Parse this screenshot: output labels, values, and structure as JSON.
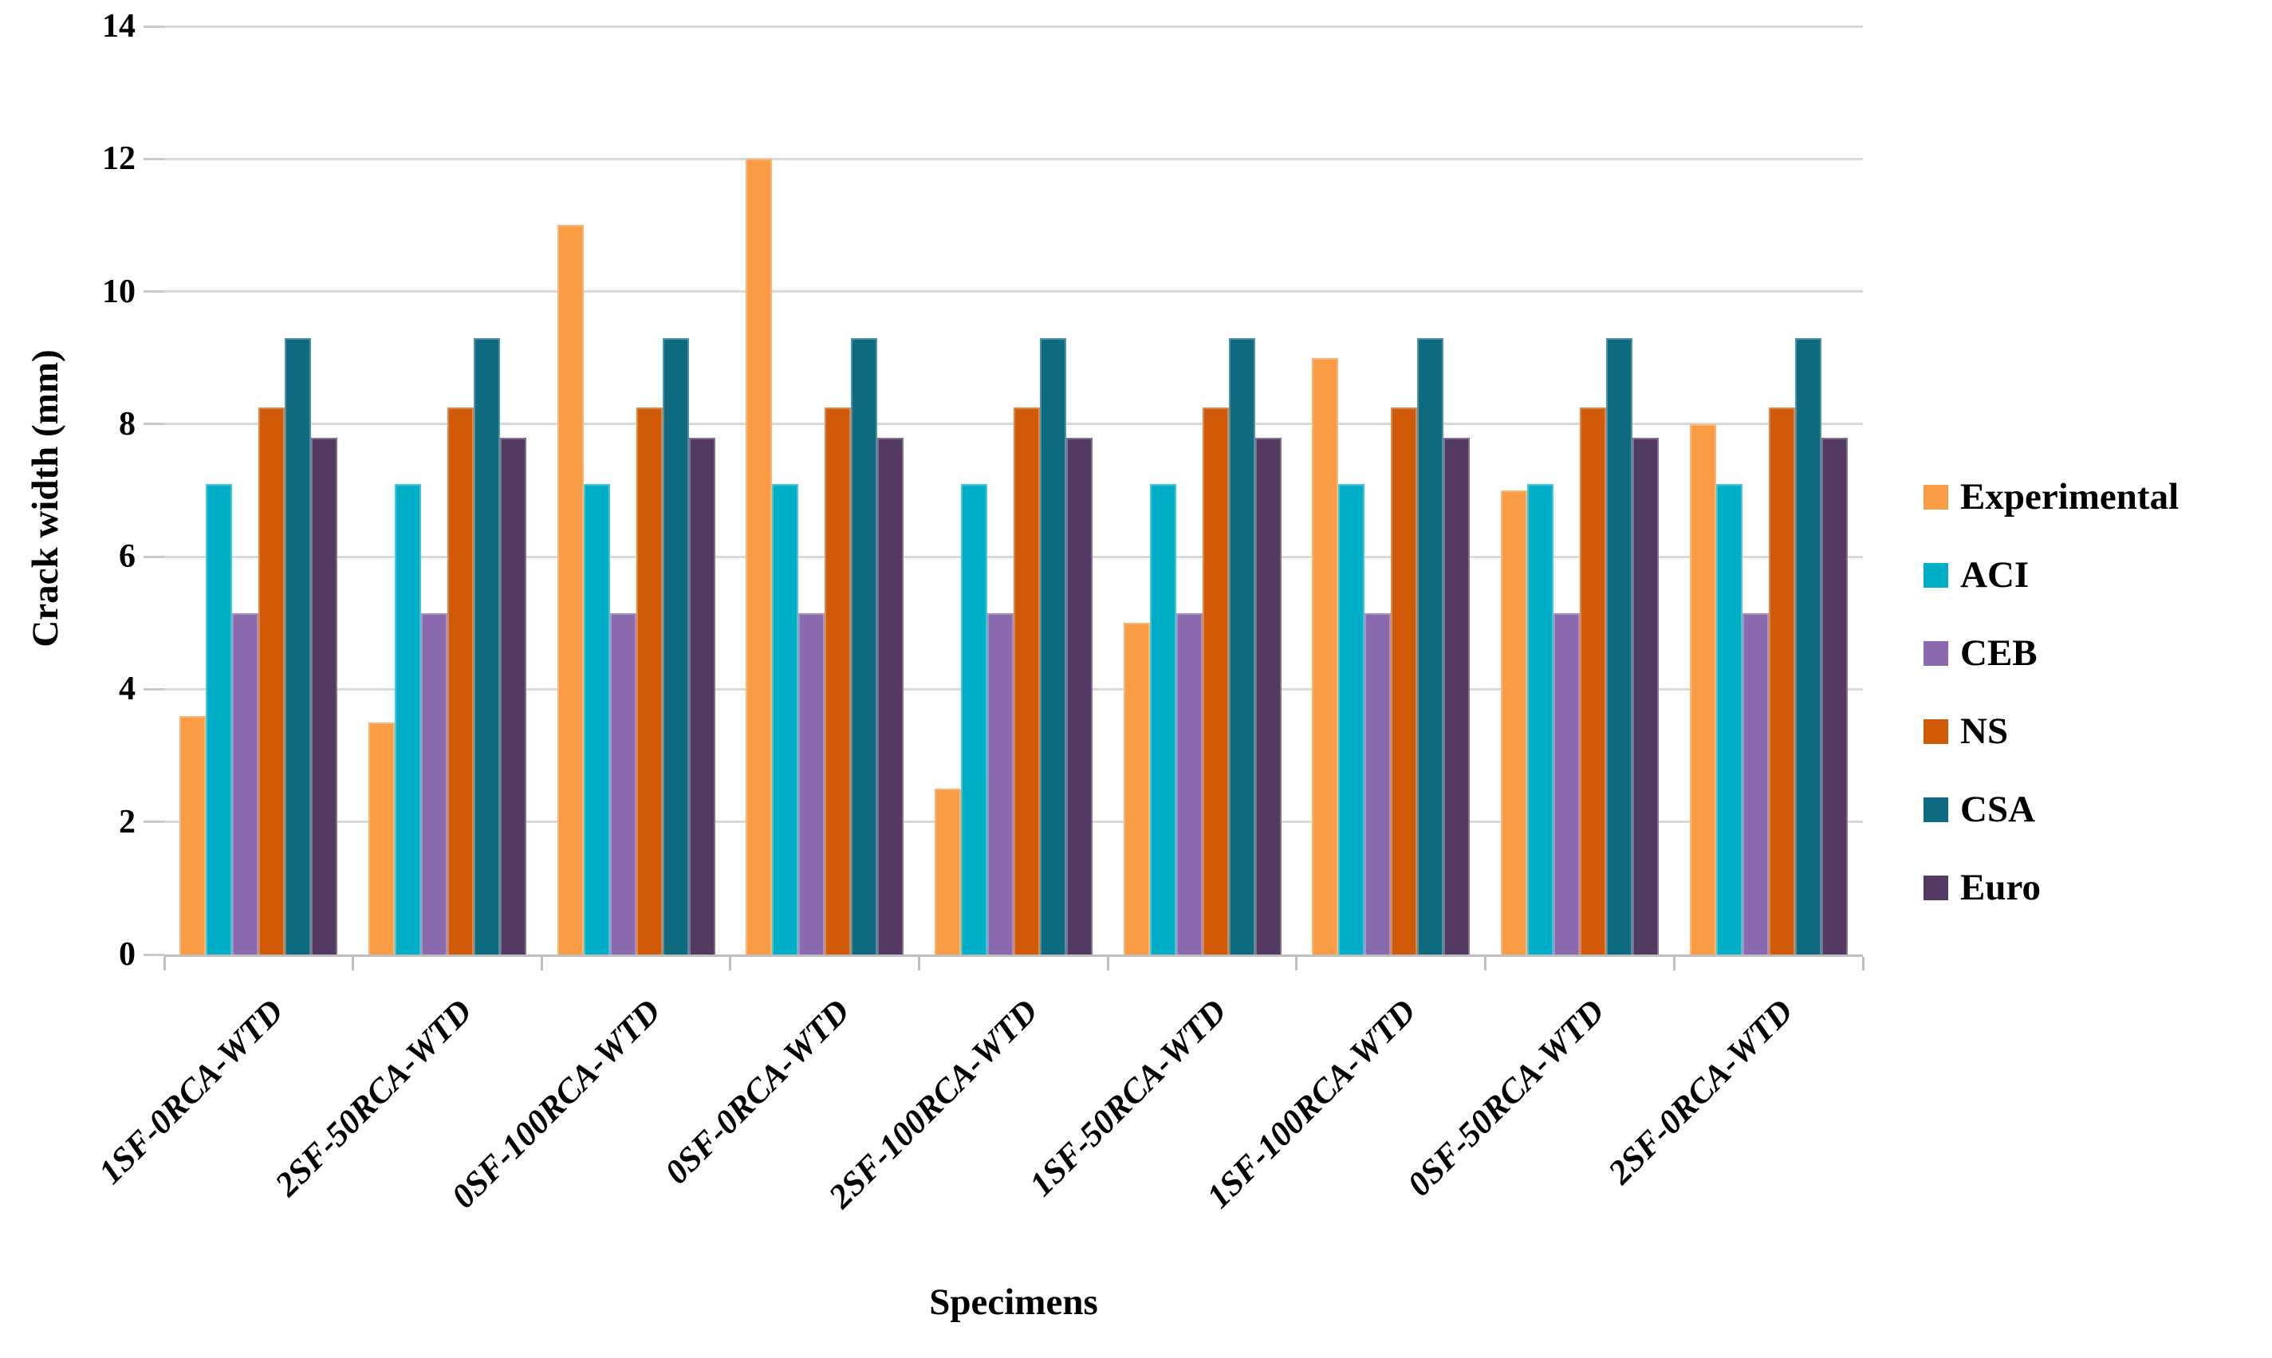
{
  "chart_data": {
    "type": "bar",
    "title": "",
    "xlabel": "Specimens",
    "ylabel": "Crack width (mm)",
    "ylim": [
      0,
      14
    ],
    "yticks": [
      0,
      2,
      4,
      6,
      8,
      10,
      12,
      14
    ],
    "grid": true,
    "legend_position": "right",
    "categories": [
      "1SF-0RCA-WTD",
      "2SF-50RCA-WTD",
      "0SF-100RCA-WTD",
      "0SF-0RCA-WTD",
      "2SF-100RCA-WTD",
      "1SF-50RCA-WTD",
      "1SF-100RCA-WTD",
      "0SF-50RCA-WTD",
      "2SF-0RCA-WTD"
    ],
    "series": [
      {
        "name": "Experimental",
        "color": "#F99C45",
        "values": [
          3.6,
          3.5,
          11,
          12,
          2.5,
          5,
          9,
          7,
          8
        ]
      },
      {
        "name": "ACI",
        "color": "#00AEC7",
        "values": [
          7.1,
          7.1,
          7.1,
          7.1,
          7.1,
          7.1,
          7.1,
          7.1,
          7.1
        ]
      },
      {
        "name": "CEB",
        "color": "#8A69AE",
        "values": [
          5.15,
          5.15,
          5.15,
          5.15,
          5.15,
          5.15,
          5.15,
          5.15,
          5.15
        ]
      },
      {
        "name": "NS",
        "color": "#D05A08",
        "values": [
          8.25,
          8.25,
          8.25,
          8.25,
          8.25,
          8.25,
          8.25,
          8.25,
          8.25
        ]
      },
      {
        "name": "CSA",
        "color": "#0E6A7E",
        "values": [
          9.3,
          9.3,
          9.3,
          9.3,
          9.3,
          9.3,
          9.3,
          9.3,
          9.3
        ]
      },
      {
        "name": "Euro",
        "color": "#523A62",
        "values": [
          7.8,
          7.8,
          7.8,
          7.8,
          7.8,
          7.8,
          7.8,
          7.8,
          7.8
        ]
      }
    ]
  },
  "colors": {
    "background": "#FFFFFF",
    "gridline": "#D9D9D9",
    "axis_line": "#BFBFBF",
    "text": "#000000"
  }
}
